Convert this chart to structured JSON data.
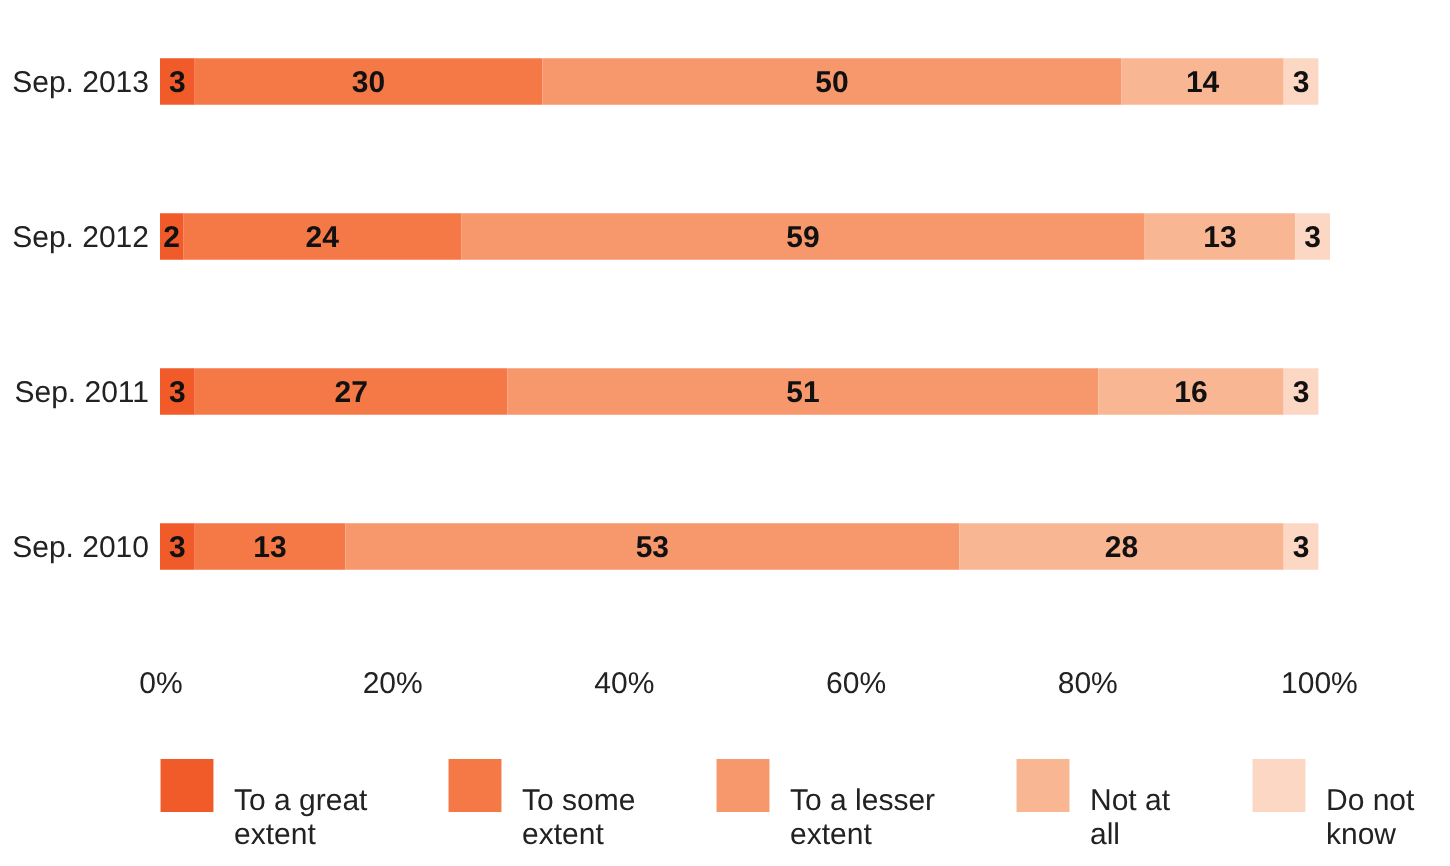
{
  "chart_data": {
    "type": "bar",
    "orientation": "horizontal",
    "stacked": true,
    "categories": [
      "Sep. 2013",
      "Sep. 2012",
      "Sep. 2011",
      "Sep. 2010"
    ],
    "series": [
      {
        "name": "To a great extent",
        "color": "#f15a29",
        "values": [
          3,
          2,
          3,
          3
        ]
      },
      {
        "name": "To some extent",
        "color": "#f57847",
        "values": [
          30,
          24,
          27,
          13
        ]
      },
      {
        "name": "To a lesser extent",
        "color": "#f7976c",
        "values": [
          50,
          59,
          51,
          53
        ]
      },
      {
        "name": "Not at all",
        "color": "#f9b693",
        "values": [
          14,
          13,
          16,
          28
        ]
      },
      {
        "name": "Do not know",
        "color": "#fcd7c3",
        "values": [
          3,
          3,
          3,
          3
        ]
      }
    ],
    "xlim": [
      0,
      101
    ],
    "xticks": [
      {
        "value": 0,
        "label": "0%"
      },
      {
        "value": 20,
        "label": "20%"
      },
      {
        "value": 40,
        "label": "40%"
      },
      {
        "value": 60,
        "label": "60%"
      },
      {
        "value": 80,
        "label": "80%"
      },
      {
        "value": 100,
        "label": "100%"
      }
    ],
    "data_labels": true,
    "legend": "bottom",
    "grid": false
  }
}
